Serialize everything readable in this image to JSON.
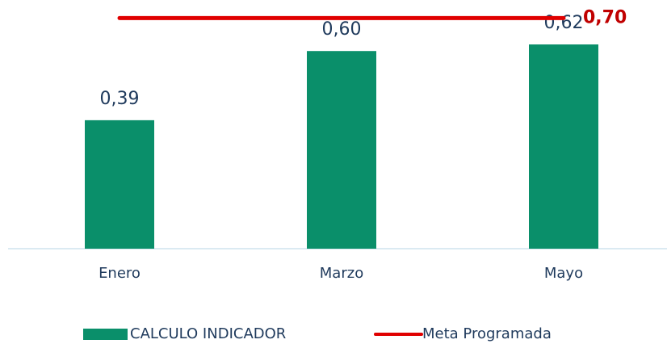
{
  "chart_data": {
    "type": "bar",
    "categories": [
      "Enero",
      "Marzo",
      "Mayo"
    ],
    "series": [
      {
        "name": "CALCULO INDICADOR",
        "type": "bar",
        "color": "#0a8f6a",
        "values": [
          0.39,
          0.6,
          0.62
        ],
        "value_labels": [
          "0,39",
          "0,60",
          "0,62"
        ]
      },
      {
        "name": "Meta Programada",
        "type": "line",
        "color": "#e00000",
        "values": [
          0.7,
          0.7,
          0.7
        ],
        "value_labels": [
          null,
          null,
          "0,70"
        ]
      }
    ],
    "ylim": [
      0,
      0.75
    ],
    "grid": false,
    "legend": "bottom"
  }
}
